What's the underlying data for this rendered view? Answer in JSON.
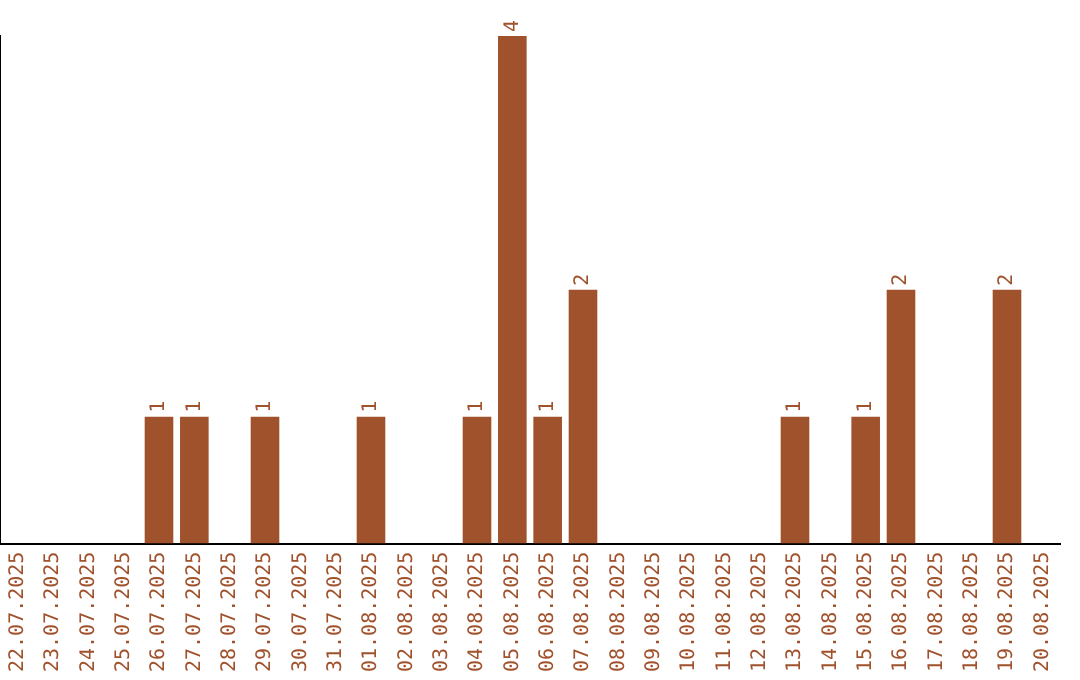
{
  "chart_data": {
    "type": "bar",
    "categories": [
      "22.07.2025",
      "23.07.2025",
      "24.07.2025",
      "25.07.2025",
      "26.07.2025",
      "27.07.2025",
      "28.07.2025",
      "29.07.2025",
      "30.07.2025",
      "31.07.2025",
      "01.08.2025",
      "02.08.2025",
      "03.08.2025",
      "04.08.2025",
      "05.08.2025",
      "06.08.2025",
      "07.08.2025",
      "08.08.2025",
      "09.08.2025",
      "10.08.2025",
      "11.08.2025",
      "12.08.2025",
      "13.08.2025",
      "14.08.2025",
      "15.08.2025",
      "16.08.2025",
      "17.08.2025",
      "18.08.2025",
      "19.08.2025",
      "20.08.2025"
    ],
    "values": [
      0,
      0,
      0,
      0,
      1,
      1,
      0,
      1,
      0,
      0,
      1,
      0,
      0,
      1,
      4,
      1,
      2,
      0,
      0,
      0,
      0,
      0,
      1,
      0,
      1,
      2,
      0,
      0,
      2,
      0
    ],
    "value_labels": [
      null,
      null,
      null,
      null,
      "1",
      "1",
      null,
      "1",
      null,
      null,
      "1",
      null,
      null,
      "1",
      "4",
      "1",
      "2",
      null,
      null,
      null,
      null,
      null,
      "1",
      null,
      "1",
      "2",
      null,
      null,
      "2",
      null
    ],
    "color": "#a0522d",
    "grid": false,
    "legend": false
  }
}
